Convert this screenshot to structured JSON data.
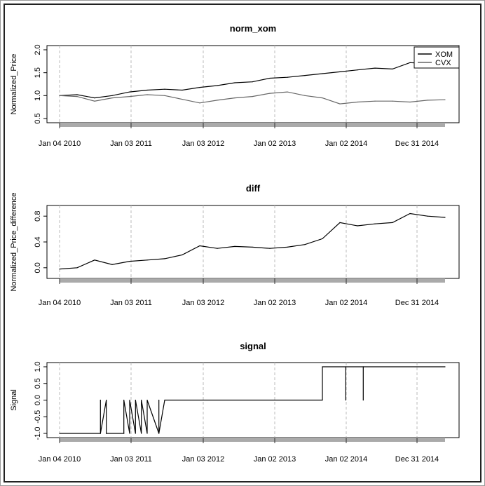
{
  "chart_data": [
    {
      "type": "line",
      "title": "norm_xom",
      "ylabel": "Normalized_Price",
      "xlabel": "",
      "x_tick_labels": [
        "Jan 04 2010",
        "Jan 03 2011",
        "Jan 03 2012",
        "Jan 02 2013",
        "Jan 02 2014",
        "Dec 31 2014"
      ],
      "y_ticks": [
        "0.5",
        "1.0",
        "1.5",
        "2.0"
      ],
      "ylim": [
        0.5,
        2.0
      ],
      "legend": {
        "placement": "top-right",
        "entries": [
          "XOM",
          "CVX"
        ]
      },
      "grid": "vertical dashed",
      "x": [
        "2010-01",
        "2010-04",
        "2010-07",
        "2010-10",
        "2011-01",
        "2011-04",
        "2011-07",
        "2011-10",
        "2012-01",
        "2012-04",
        "2012-07",
        "2012-10",
        "2013-01",
        "2013-04",
        "2013-07",
        "2013-10",
        "2014-01",
        "2014-04",
        "2014-07",
        "2014-10",
        "2015-01",
        "2015-04",
        "2015-07"
      ],
      "series": [
        {
          "name": "XOM",
          "color": "#000000",
          "values": [
            1.0,
            1.02,
            0.95,
            1.0,
            1.08,
            1.12,
            1.14,
            1.12,
            1.18,
            1.22,
            1.28,
            1.3,
            1.38,
            1.4,
            1.44,
            1.48,
            1.52,
            1.56,
            1.6,
            1.58,
            1.72,
            1.7,
            1.72
          ]
        },
        {
          "name": "CVX",
          "color": "#666666",
          "values": [
            1.0,
            0.98,
            0.88,
            0.95,
            0.98,
            1.02,
            1.0,
            0.92,
            0.84,
            0.9,
            0.95,
            0.98,
            1.05,
            1.08,
            1.0,
            0.95,
            0.82,
            0.86,
            0.88,
            0.88,
            0.86,
            0.9,
            0.91
          ]
        }
      ]
    },
    {
      "type": "line",
      "title": "diff",
      "ylabel": "Normalized_Price_difference",
      "xlabel": "",
      "x_tick_labels": [
        "Jan 04 2010",
        "Jan 03 2011",
        "Jan 03 2012",
        "Jan 02 2013",
        "Jan 02 2014",
        "Dec 31 2014"
      ],
      "y_ticks": [
        "0.0",
        "0.4",
        "0.8"
      ],
      "ylim": [
        -0.1,
        0.9
      ],
      "grid": "vertical dashed",
      "x": [
        "2010-01",
        "2010-04",
        "2010-07",
        "2010-10",
        "2011-01",
        "2011-04",
        "2011-07",
        "2011-10",
        "2012-01",
        "2012-04",
        "2012-07",
        "2012-10",
        "2013-01",
        "2013-04",
        "2013-07",
        "2013-10",
        "2014-01",
        "2014-04",
        "2014-07",
        "2014-10",
        "2015-01",
        "2015-04",
        "2015-07"
      ],
      "series": [
        {
          "name": "",
          "color": "#000000",
          "values": [
            -0.02,
            0.0,
            0.12,
            0.05,
            0.1,
            0.12,
            0.14,
            0.2,
            0.34,
            0.3,
            0.33,
            0.32,
            0.3,
            0.32,
            0.36,
            0.45,
            0.7,
            0.65,
            0.68,
            0.7,
            0.84,
            0.8,
            0.78
          ]
        }
      ]
    },
    {
      "type": "line",
      "title": "signal",
      "ylabel": "Signal",
      "xlabel": "",
      "x_tick_labels": [
        "Jan 04 2010",
        "Jan 03 2011",
        "Jan 03 2012",
        "Jan 02 2013",
        "Jan 02 2014",
        "Dec 31 2014"
      ],
      "y_ticks": [
        "-1.0",
        "-0.5",
        "0.0",
        "0.5",
        "1.0"
      ],
      "ylim": [
        -1.0,
        1.0
      ],
      "grid": "vertical dashed",
      "x": [
        "2010-01",
        "2010-08",
        "2010-08",
        "2010-08",
        "2010-09",
        "2010-09",
        "2010-09",
        "2010-12",
        "2010-12",
        "2011-01",
        "2011-01",
        "2011-02",
        "2011-02",
        "2011-03",
        "2011-03",
        "2011-04",
        "2011-04",
        "2011-06",
        "2011-06",
        "2011-06",
        "2011-07",
        "2013-10",
        "2013-10",
        "2014-02",
        "2014-02",
        "2014-02",
        "2014-05",
        "2014-05",
        "2014-05",
        "2015-07"
      ],
      "series": [
        {
          "name": "",
          "color": "#000000",
          "values": [
            -1.0,
            -1.0,
            0.0,
            -1.0,
            0.0,
            -1.0,
            -1.0,
            -1.0,
            0.0,
            -1.0,
            0.0,
            -1.0,
            0.0,
            -1.0,
            0.0,
            -1.0,
            0.0,
            -1.0,
            0.0,
            -1.0,
            0.0,
            0.0,
            1.0,
            1.0,
            0.0,
            1.0,
            1.0,
            0.0,
            1.0,
            1.0
          ]
        }
      ]
    }
  ]
}
